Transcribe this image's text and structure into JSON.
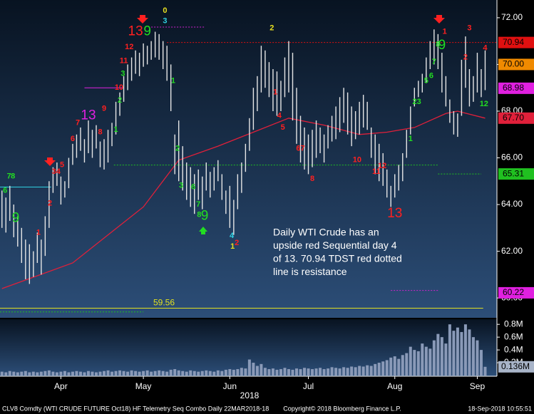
{
  "chart_data": {
    "type": "ohlc",
    "xlabel": "2018",
    "xlim": [
      -0.5,
      126
    ],
    "xticks": [
      {
        "value": 15,
        "label": "Apr"
      },
      {
        "value": 36,
        "label": "May"
      },
      {
        "value": 58,
        "label": "Jun"
      },
      {
        "value": 78,
        "label": "Jul"
      },
      {
        "value": 100,
        "label": "Aug"
      },
      {
        "value": 121,
        "label": "Sep"
      }
    ],
    "ylim": [
      59.18,
      72.76
    ],
    "yticks": [
      {
        "value": 60,
        "label": "60.00"
      },
      {
        "value": 62,
        "label": "62.00"
      },
      {
        "value": 64,
        "label": "64.00"
      },
      {
        "value": 66,
        "label": "66.00"
      },
      {
        "value": 68,
        "label": "68.00"
      },
      {
        "value": 70,
        "label": "70.00"
      },
      {
        "value": 72,
        "label": "72.00"
      }
    ],
    "bar_color": "#e6e6e6",
    "high": [
      64.6,
      64.3,
      64.8,
      64.0,
      63.5,
      63.0,
      62.5,
      62.3,
      62.0,
      62.8,
      62.5,
      63.5,
      65.0,
      65.6,
      65.8,
      65.2,
      65.0,
      66.0,
      66.6,
      67.0,
      67.3,
      66.8,
      67.6,
      67.2,
      67.4,
      66.7,
      66.8,
      67.2,
      67.5,
      68.4,
      68.8,
      69.5,
      70.0,
      70.3,
      70.6,
      70.5,
      70.9,
      70.8,
      71.0,
      71.4,
      71.3,
      71.0,
      70.8,
      70.0,
      67.0,
      67.6,
      66.5,
      65.8,
      65.6,
      65.3,
      65.5,
      65.2,
      65.8,
      65.4,
      65.6,
      65.9,
      65.3,
      64.6,
      64.8,
      64.2,
      65.3,
      65.8,
      66.6,
      67.7,
      69.0,
      69.5,
      70.8,
      70.6,
      70.1,
      69.8,
      69.7,
      69.3,
      70.3,
      71.0,
      70.5,
      69.0,
      67.8,
      67.3,
      67.0,
      67.2,
      67.6,
      67.3,
      67.0,
      67.4,
      67.8,
      68.2,
      68.6,
      69.0,
      68.8,
      68.2,
      68.0,
      68.4,
      68.7,
      68.4,
      67.3,
      67.0,
      66.6,
      66.2,
      65.5,
      64.8,
      65.3,
      65.7,
      66.2,
      67.2,
      68.2,
      69.0,
      69.3,
      69.6,
      70.3,
      71.0,
      71.5,
      71.3,
      70.5,
      69.5,
      68.5,
      68.0,
      67.9,
      70.2,
      71.2,
      69.8,
      69.5,
      70.5,
      69.8,
      70.6
    ],
    "low": [
      63.0,
      62.8,
      63.3,
      62.6,
      62.2,
      61.5,
      60.8,
      60.6,
      60.9,
      61.5,
      61.0,
      61.8,
      63.0,
      64.5,
      64.8,
      64.0,
      64.3,
      64.7,
      65.7,
      66.0,
      66.3,
      65.8,
      66.2,
      66.0,
      66.4,
      65.6,
      65.5,
      65.8,
      66.5,
      67.0,
      67.8,
      68.4,
      68.9,
      69.3,
      69.6,
      69.5,
      69.9,
      70.0,
      70.2,
      70.3,
      70.2,
      69.8,
      69.3,
      68.0,
      65.3,
      65.0,
      64.6,
      64.2,
      63.9,
      63.6,
      64.2,
      63.8,
      64.6,
      64.3,
      64.6,
      65.0,
      64.2,
      63.6,
      63.0,
      62.7,
      63.8,
      64.5,
      65.4,
      66.3,
      67.2,
      68.0,
      68.8,
      69.0,
      68.6,
      68.0,
      67.8,
      68.0,
      68.6,
      68.8,
      67.6,
      66.6,
      65.8,
      65.5,
      65.3,
      65.6,
      66.0,
      66.2,
      65.8,
      66.4,
      66.7,
      66.8,
      67.1,
      67.5,
      67.0,
      66.5,
      66.8,
      67.0,
      67.3,
      67.2,
      66.0,
      65.3,
      65.0,
      64.8,
      64.3,
      63.9,
      64.3,
      64.6,
      65.0,
      66.0,
      67.0,
      68.2,
      68.6,
      68.8,
      69.2,
      69.8,
      70.0,
      69.8,
      68.8,
      68.2,
      67.5,
      67.0,
      66.9,
      67.8,
      69.0,
      68.2,
      68.4,
      68.8,
      68.6,
      68.9
    ],
    "moving_average": {
      "color": "#e0203a",
      "x": [
        0,
        18,
        27,
        36,
        45,
        55,
        64,
        73,
        82,
        91,
        98,
        105,
        113,
        116,
        123
      ],
      "values": [
        60.4,
        61.5,
        62.7,
        63.9,
        65.9,
        66.5,
        67.1,
        67.7,
        67.4,
        67.0,
        67.1,
        67.3,
        67.9,
        68.0,
        67.7
      ]
    },
    "levels": [
      {
        "value": 70.94,
        "from": 42,
        "to": 126,
        "color": "#e01010",
        "dotted": true
      },
      {
        "value": 71.6,
        "from": 38,
        "to": 51.5,
        "color": "#d020d0",
        "dotted": true
      },
      {
        "value": 69.0,
        "from": 21,
        "to": 31,
        "color": "#e020e0",
        "dotted": false
      },
      {
        "value": 65.69,
        "from": 28.5,
        "to": 111,
        "color": "#20c020",
        "dotted": true
      },
      {
        "value": 65.31,
        "from": 111,
        "to": 122,
        "color": "#20c020",
        "dotted": true
      },
      {
        "value": 64.75,
        "from": -0.5,
        "to": 12.5,
        "color": "#30d0e0",
        "dotted": false
      },
      {
        "value": 60.32,
        "from": 99,
        "to": 111,
        "color": "#d020d0",
        "dotted": true
      },
      {
        "value": 59.56,
        "label": "59.56",
        "from": -0.5,
        "to": 122.5,
        "color": "#e0e020",
        "dotted": false
      },
      {
        "value": 59.4,
        "from": -0.5,
        "to": 36,
        "color": "#20c020",
        "dotted": true
      }
    ],
    "price_tags": [
      {
        "value": 70.94,
        "label": "70.94",
        "color": "#e01010"
      },
      {
        "value": 70,
        "label": "70.00",
        "color": "#f08a00"
      },
      {
        "value": 68.98,
        "label": "68.98",
        "color": "#e020e0"
      },
      {
        "value": 67.7,
        "label": "67.70",
        "color": "#e0203a"
      },
      {
        "value": 65.31,
        "label": "65.31",
        "color": "#20c020"
      },
      {
        "value": 60.22,
        "label": "60.22",
        "color": "#e020e0"
      }
    ],
    "completions": [
      {
        "text": "13",
        "x": 34,
        "y": 71.4,
        "color": "#ff2020"
      },
      {
        "text": "9",
        "x": 37,
        "y": 71.4,
        "color": "#22dd22"
      },
      {
        "text": "13",
        "x": 22,
        "y": 67.8,
        "color": "#e020e0"
      },
      {
        "text": "9",
        "x": 51.6,
        "y": 63.5,
        "color": "#22dd22"
      },
      {
        "text": "13",
        "x": 100,
        "y": 63.6,
        "color": "#ff2020"
      },
      {
        "text": "9",
        "x": 112,
        "y": 70.8,
        "color": "#22dd22"
      },
      {
        "text": "9",
        "x": 3.5,
        "y": 63.4,
        "color": "#22dd22"
      }
    ],
    "counts": [
      {
        "text": "0",
        "x": 41.5,
        "y": 72.3,
        "color": "#e8e020"
      },
      {
        "text": "3",
        "x": 41.5,
        "y": 71.85,
        "color": "#30d0e0"
      },
      {
        "text": "2",
        "x": 68.7,
        "y": 71.55,
        "color": "#e8e020"
      },
      {
        "text": "3",
        "x": 119,
        "y": 71.55,
        "color": "#ff2020"
      },
      {
        "text": "4",
        "x": 123,
        "y": 70.7,
        "color": "#ff2020"
      },
      {
        "text": "12",
        "x": 122.7,
        "y": 68.3,
        "color": "#22dd22"
      },
      {
        "text": "1",
        "x": 43.6,
        "y": 69.3,
        "color": "#22dd22"
      },
      {
        "text": "2",
        "x": 44.7,
        "y": 66.4,
        "color": "#22dd22"
      },
      {
        "text": "3",
        "x": 45.6,
        "y": 64.8,
        "color": "#22dd22"
      },
      {
        "text": "6",
        "x": 48.7,
        "y": 64.75,
        "color": "#22dd22"
      },
      {
        "text": "7",
        "x": 50,
        "y": 64.0,
        "color": "#22dd22"
      },
      {
        "text": "8",
        "x": 50.2,
        "y": 63.55,
        "color": "#22dd22"
      },
      {
        "text": "1",
        "x": 9.3,
        "y": 62.8,
        "color": "#ff2020"
      },
      {
        "text": "2",
        "x": 12.2,
        "y": 64.05,
        "color": "#ff2020"
      },
      {
        "text": "34",
        "x": 13.8,
        "y": 65.4,
        "color": "#ff2020"
      },
      {
        "text": "5",
        "x": 15.3,
        "y": 65.7,
        "color": "#ff2020"
      },
      {
        "text": "6",
        "x": 18,
        "y": 66.8,
        "color": "#ff2020"
      },
      {
        "text": "7",
        "x": 19.3,
        "y": 67.5,
        "color": "#ff2020"
      },
      {
        "text": "8",
        "x": 25,
        "y": 67.1,
        "color": "#ff2020"
      },
      {
        "text": "9",
        "x": 26,
        "y": 68.1,
        "color": "#ff2020"
      },
      {
        "text": "10",
        "x": 29.8,
        "y": 69.0,
        "color": "#ff2020"
      },
      {
        "text": "11",
        "x": 31,
        "y": 70.15,
        "color": "#ff2020"
      },
      {
        "text": "12",
        "x": 32.4,
        "y": 70.75,
        "color": "#ff2020"
      },
      {
        "text": "1",
        "x": 29,
        "y": 67.2,
        "color": "#22dd22"
      },
      {
        "text": "2",
        "x": 30,
        "y": 68.45,
        "color": "#22dd22"
      },
      {
        "text": "3",
        "x": 30.8,
        "y": 69.6,
        "color": "#22dd22"
      },
      {
        "text": "1",
        "x": 69.6,
        "y": 68.8,
        "color": "#ff2020"
      },
      {
        "text": "4",
        "x": 70.6,
        "y": 67.8,
        "color": "#ff2020"
      },
      {
        "text": "5",
        "x": 71.5,
        "y": 67.3,
        "color": "#ff2020"
      },
      {
        "text": "67",
        "x": 76,
        "y": 66.4,
        "color": "#ff2020"
      },
      {
        "text": "8",
        "x": 79,
        "y": 65.1,
        "color": "#ff2020"
      },
      {
        "text": "10",
        "x": 90.4,
        "y": 65.9,
        "color": "#ff2020"
      },
      {
        "text": "11",
        "x": 95.3,
        "y": 65.4,
        "color": "#ff2020"
      },
      {
        "text": "12",
        "x": 96.8,
        "y": 65.65,
        "color": "#ff2020"
      },
      {
        "text": "1",
        "x": 104,
        "y": 66.8,
        "color": "#22dd22"
      },
      {
        "text": "23",
        "x": 105.6,
        "y": 68.4,
        "color": "#22dd22"
      },
      {
        "text": "5",
        "x": 108,
        "y": 69.3,
        "color": "#22dd22"
      },
      {
        "text": "6",
        "x": 109.3,
        "y": 69.5,
        "color": "#22dd22"
      },
      {
        "text": "7",
        "x": 110,
        "y": 70.1,
        "color": "#22dd22"
      },
      {
        "text": "8",
        "x": 111,
        "y": 70.85,
        "color": "#22dd22"
      },
      {
        "text": "1",
        "x": 112.7,
        "y": 71.4,
        "color": "#ff2020"
      },
      {
        "text": "2",
        "x": 118,
        "y": 70.3,
        "color": "#ff2020"
      },
      {
        "text": "1",
        "x": 58.7,
        "y": 62.2,
        "color": "#e8e020"
      },
      {
        "text": "2",
        "x": 59.8,
        "y": 62.35,
        "color": "#ff2020"
      },
      {
        "text": "4",
        "x": 58.5,
        "y": 62.65,
        "color": "#30d0e0"
      },
      {
        "text": "6",
        "x": 0.8,
        "y": 64.6,
        "color": "#22dd22"
      },
      {
        "text": "7",
        "x": 1.8,
        "y": 65.2,
        "color": "#22dd22"
      },
      {
        "text": "8",
        "x": 2.8,
        "y": 65.2,
        "color": "#22dd22"
      }
    ],
    "note": [
      "Daily WTI Crude has an",
      "upside red Sequential day 4",
      "of 13.  70.94 TDST red dotted",
      "line is resistance"
    ],
    "volume": {
      "color": "#8a9ab8",
      "ylim": [
        0,
        0.88
      ],
      "yticks": [
        {
          "value": 0.2,
          "label": "0.2M"
        },
        {
          "value": 0.4,
          "label": "0.4M"
        },
        {
          "value": 0.6,
          "label": "0.6M"
        },
        {
          "value": 0.8,
          "label": "0.8M"
        }
      ],
      "tag": {
        "value": 0.136,
        "label": "0.136M"
      },
      "values": [
        0.06,
        0.05,
        0.07,
        0.06,
        0.05,
        0.06,
        0.07,
        0.05,
        0.06,
        0.05,
        0.06,
        0.07,
        0.08,
        0.06,
        0.05,
        0.06,
        0.07,
        0.05,
        0.06,
        0.07,
        0.06,
        0.05,
        0.07,
        0.06,
        0.05,
        0.06,
        0.07,
        0.08,
        0.06,
        0.07,
        0.08,
        0.07,
        0.06,
        0.08,
        0.07,
        0.06,
        0.07,
        0.08,
        0.06,
        0.07,
        0.08,
        0.07,
        0.06,
        0.09,
        0.1,
        0.08,
        0.07,
        0.06,
        0.08,
        0.07,
        0.06,
        0.07,
        0.08,
        0.07,
        0.06,
        0.08,
        0.07,
        0.09,
        0.1,
        0.09,
        0.1,
        0.12,
        0.11,
        0.25,
        0.2,
        0.15,
        0.18,
        0.12,
        0.1,
        0.11,
        0.09,
        0.1,
        0.12,
        0.1,
        0.09,
        0.11,
        0.1,
        0.12,
        0.11,
        0.1,
        0.11,
        0.12,
        0.1,
        0.11,
        0.13,
        0.12,
        0.11,
        0.13,
        0.12,
        0.14,
        0.13,
        0.15,
        0.14,
        0.16,
        0.15,
        0.18,
        0.2,
        0.22,
        0.24,
        0.28,
        0.3,
        0.26,
        0.32,
        0.35,
        0.45,
        0.4,
        0.38,
        0.5,
        0.45,
        0.42,
        0.55,
        0.65,
        0.6,
        0.5,
        0.8,
        0.7,
        0.75,
        0.68,
        0.8,
        0.72,
        0.6,
        0.55,
        0.4,
        0.136
      ]
    },
    "footer": [
      "CLV8 Comdty (WTI CRUDE FUTURE  Oct18) HF Telemetry Seq Combo  Daily 22MAR2018-18",
      "Copyright© 2018 Bloomberg Finance L.P.",
      "18-Sep-2018 10:55:51"
    ]
  }
}
